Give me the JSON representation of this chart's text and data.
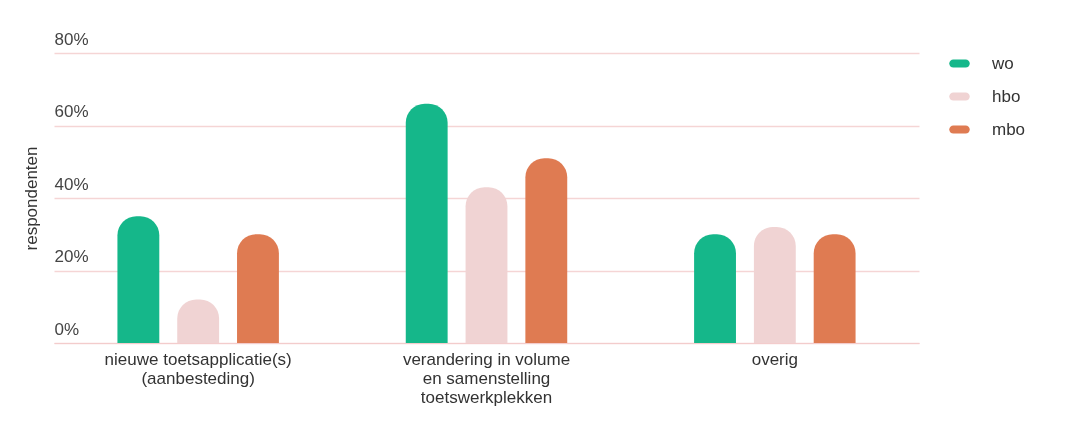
{
  "chart_data": {
    "type": "bar",
    "ylabel": "respondenten",
    "categories": [
      "nieuwe toetsapplicatie(s) (aanbesteding)",
      "verandering in volume en samenstelling toetswerkplekken",
      "overig"
    ],
    "series": [
      {
        "name": "wo",
        "color": "#15b78a",
        "values": [
          35,
          66,
          30
        ]
      },
      {
        "name": "hbo",
        "color": "#f0d3d3",
        "values": [
          12,
          43,
          32
        ]
      },
      {
        "name": "mbo",
        "color": "#df7b52",
        "values": [
          30,
          51,
          30
        ]
      }
    ],
    "ylim": [
      0,
      80
    ],
    "yticks": [
      {
        "value": 0,
        "label": "0%"
      },
      {
        "value": 20,
        "label": "20%"
      },
      {
        "value": 40,
        "label": "40%"
      },
      {
        "value": 60,
        "label": "60%"
      },
      {
        "value": 80,
        "label": "80%"
      }
    ],
    "grid": "y",
    "legend": "right"
  }
}
